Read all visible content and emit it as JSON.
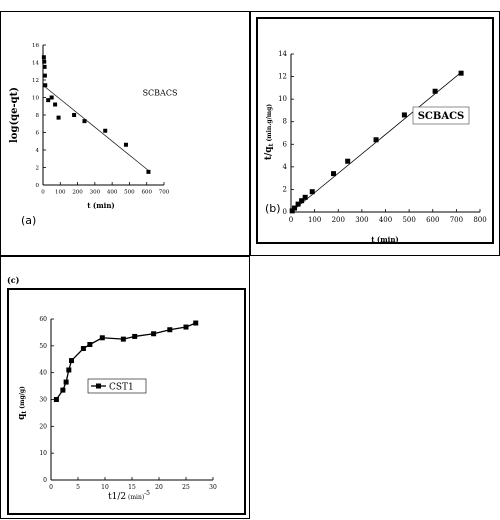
{
  "panels": {
    "a": {
      "tag": "(a)"
    },
    "b": {
      "tag": "(b)"
    },
    "c": {
      "tag": "(c)"
    }
  },
  "chart_data": [
    {
      "id": "a",
      "type": "scatter",
      "ylabel": "log(qe-qt)",
      "xlabel": "t (min)",
      "xlim": [
        0,
        700
      ],
      "ylim": [
        0,
        16
      ],
      "xticks": [
        "0",
        "100",
        "200",
        "300",
        "400",
        "500",
        "600",
        "700"
      ],
      "yticks": [
        "0",
        "2",
        "4",
        "6",
        "8",
        "10",
        "12",
        "14",
        "16"
      ],
      "annotation": "SCBACS",
      "points": [
        [
          5,
          14.6
        ],
        [
          7,
          14.1
        ],
        [
          9,
          13.5
        ],
        [
          11,
          12.5
        ],
        [
          13,
          11.4
        ],
        [
          30,
          9.7
        ],
        [
          50,
          10.0
        ],
        [
          70,
          9.2
        ],
        [
          90,
          7.7
        ],
        [
          180,
          8.0
        ],
        [
          240,
          7.3
        ],
        [
          360,
          6.2
        ],
        [
          480,
          4.6
        ],
        [
          610,
          1.5
        ]
      ],
      "fit": [
        [
          0,
          11.4
        ],
        [
          620,
          1.5
        ]
      ]
    },
    {
      "id": "b",
      "type": "line",
      "ylabel": "t/q",
      "ylabel_sub": "t",
      "ylabel_unit": "(min.g/mg)",
      "xlabel": "t (min)",
      "xlim": [
        0,
        800
      ],
      "ylim": [
        0,
        14
      ],
      "xticks": [
        "0",
        "100",
        "200",
        "300",
        "400",
        "500",
        "600",
        "700",
        "800"
      ],
      "yticks": [
        "0",
        "2",
        "4",
        "6",
        "8",
        "10",
        "12",
        "14"
      ],
      "annotation": "SCBACS",
      "points": [
        [
          5,
          0.1
        ],
        [
          15,
          0.35
        ],
        [
          30,
          0.7
        ],
        [
          45,
          1.0
        ],
        [
          60,
          1.3
        ],
        [
          90,
          1.8
        ],
        [
          180,
          3.4
        ],
        [
          240,
          4.5
        ],
        [
          360,
          6.4
        ],
        [
          480,
          8.6
        ],
        [
          610,
          10.7
        ],
        [
          720,
          12.3
        ]
      ],
      "fit": [
        [
          0,
          0.0
        ],
        [
          725,
          12.45
        ]
      ]
    },
    {
      "id": "c",
      "type": "line",
      "ylabel": "q",
      "ylabel_sub": "t",
      "ylabel_unit": "(mg/g)",
      "xlabel": "t1/2",
      "xlabel_unit": "(min)",
      "xlabel_sup": "-5",
      "xlim": [
        0,
        30
      ],
      "ylim": [
        0,
        60
      ],
      "xticks": [
        "0",
        "5",
        "10",
        "15",
        "20",
        "25",
        "30"
      ],
      "yticks": [
        "0",
        "10",
        "20",
        "30",
        "40",
        "50",
        "60"
      ],
      "series": [
        {
          "name": "CST1",
          "points": [
            [
              1.0,
              30.0
            ],
            [
              2.2,
              33.5
            ],
            [
              2.8,
              36.5
            ],
            [
              3.3,
              41.0
            ],
            [
              3.8,
              44.5
            ],
            [
              6.0,
              49.0
            ],
            [
              7.2,
              50.5
            ],
            [
              9.5,
              53.0
            ],
            [
              13.4,
              52.5
            ],
            [
              15.5,
              53.5
            ],
            [
              19.0,
              54.5
            ],
            [
              22.0,
              56.0
            ],
            [
              25.0,
              57.0
            ],
            [
              26.8,
              58.5
            ]
          ]
        }
      ]
    }
  ]
}
